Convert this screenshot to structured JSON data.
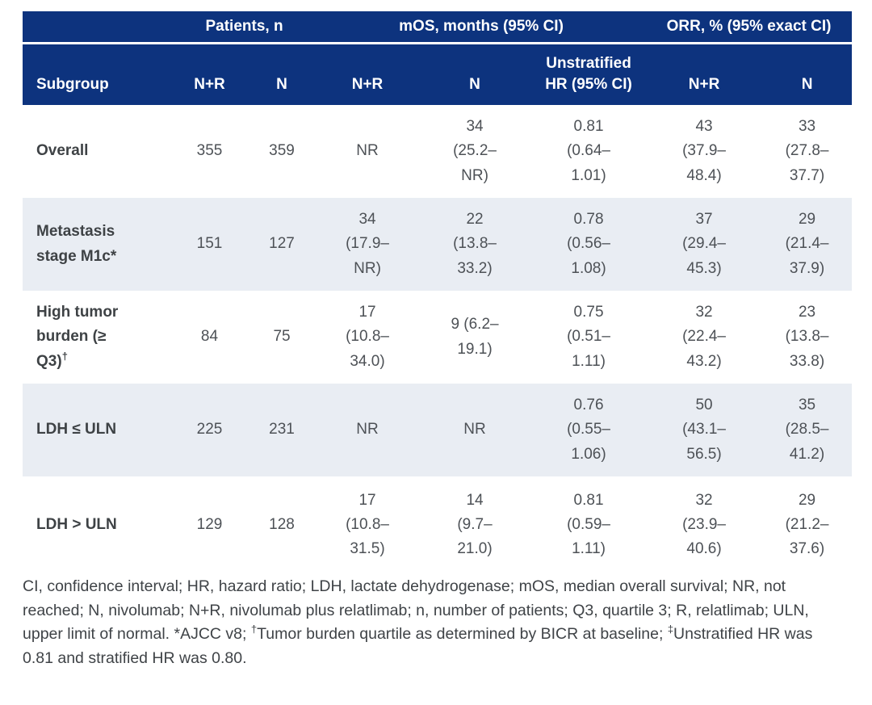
{
  "colors": {
    "header_bg": "#0d337e",
    "header_text": "#ffffff",
    "row_alt_bg": "#e9edf3",
    "body_text": "#4d5156",
    "subgroup_text": "#3e4245"
  },
  "table": {
    "group_headers": {
      "patients": "Patients, n",
      "mos": "mOS, months (95% CI)",
      "orr": "ORR, % (95% exact CI)"
    },
    "column_headers": {
      "subgroup": "Subgroup",
      "patients_nr": "N+R",
      "patients_n": "N",
      "mos_nr": "N+R",
      "mos_n": "N",
      "hr": "Unstratified\nHR (95% CI)",
      "orr_nr": "N+R",
      "orr_n": "N"
    },
    "rows": [
      {
        "subgroup": "Overall",
        "subgroup_sup": "",
        "patients_nr": "355",
        "patients_n": "359",
        "mos_nr": "NR",
        "mos_n": "34\n(25.2–\nNR)",
        "hr": "0.81\n(0.64–\n1.01)",
        "orr_nr": "43\n(37.9–\n48.4)",
        "orr_n": "33\n(27.8–\n37.7)"
      },
      {
        "subgroup": "Metastasis\nstage M1c*",
        "subgroup_sup": "",
        "patients_nr": "151",
        "patients_n": "127",
        "mos_nr": "34\n(17.9–\nNR)",
        "mos_n": "22\n(13.8–\n33.2)",
        "hr": "0.78\n(0.56–\n1.08)",
        "orr_nr": "37\n(29.4–\n45.3)",
        "orr_n": "29\n(21.4–\n37.9)"
      },
      {
        "subgroup": "High tumor\nburden (≥\nQ3)",
        "subgroup_sup": "†",
        "patients_nr": "84",
        "patients_n": "75",
        "mos_nr": "17\n(10.8–\n34.0)",
        "mos_n": "9 (6.2–\n19.1)",
        "hr": "0.75\n(0.51–\n1.11)",
        "orr_nr": "32\n(22.4–\n43.2)",
        "orr_n": "23\n(13.8–\n33.8)"
      },
      {
        "subgroup": "LDH ≤ ULN",
        "subgroup_sup": "",
        "patients_nr": "225",
        "patients_n": "231",
        "mos_nr": "NR",
        "mos_n": "NR",
        "hr": "0.76\n(0.55–\n1.06)",
        "orr_nr": "50\n(43.1–\n56.5)",
        "orr_n": "35\n(28.5–\n41.2)"
      },
      {
        "subgroup": "LDH > ULN",
        "subgroup_sup": "",
        "patients_nr": "129",
        "patients_n": "128",
        "mos_nr": "17\n(10.8–\n31.5)",
        "mos_n": "14\n(9.7–\n21.0)",
        "hr": "0.81\n(0.59–\n1.11)",
        "orr_nr": "32\n(23.9–\n40.6)",
        "orr_n": "29\n(21.2–\n37.6)"
      }
    ]
  },
  "footnote": {
    "segments": [
      {
        "text": "CI, confidence interval; HR, hazard ratio; LDH, lactate dehydrogenase; mOS, median overall survival; NR, not reached; N, nivolumab; N+R, nivolumab plus relatlimab; n, number of patients; Q3, quartile 3; R, relatlimab; ULN, upper limit of normal. *AJCC v8; "
      },
      {
        "sup": "†"
      },
      {
        "text": "Tumor burden quartile as determined by BICR at baseline; "
      },
      {
        "sup": "‡"
      },
      {
        "text": "Unstratified HR was 0.81 and stratified HR was 0.80."
      }
    ]
  }
}
